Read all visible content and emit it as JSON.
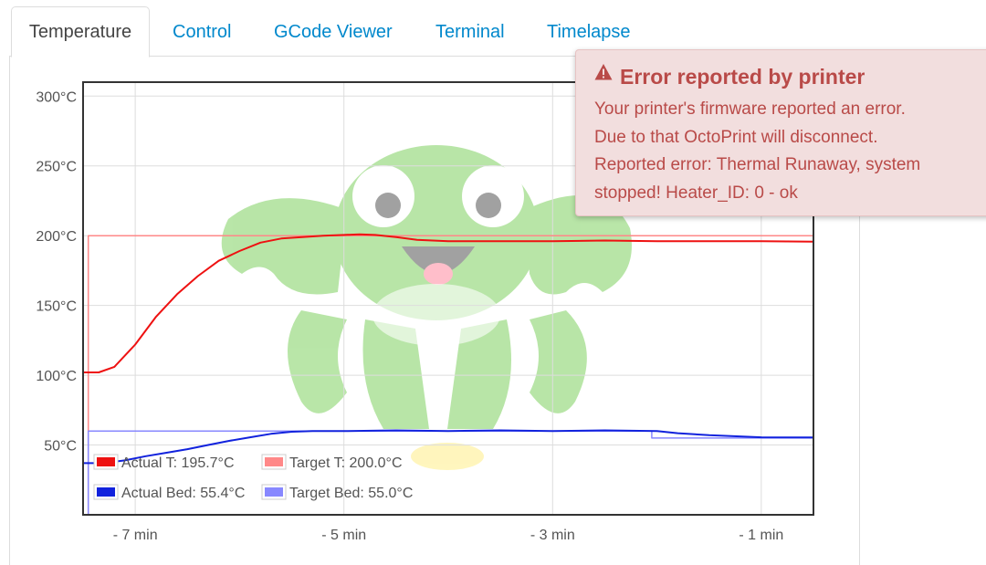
{
  "tabs": [
    {
      "label": "Temperature",
      "active": true
    },
    {
      "label": "Control",
      "active": false
    },
    {
      "label": "GCode Viewer",
      "active": false
    },
    {
      "label": "Terminal",
      "active": false
    },
    {
      "label": "Timelapse",
      "active": false
    }
  ],
  "alert": {
    "icon": "warning-icon",
    "title": "Error reported by printer",
    "lines": [
      "Your printer's firmware reported an error.",
      "Due to that OctoPrint will disconnect.",
      "Reported error: Thermal Runaway, system",
      "stopped! Heater_ID: 0 - ok"
    ],
    "background_color": "#f2dede",
    "text_color": "#b94a48"
  },
  "watermark": {
    "icon": "octoprint-logo-icon",
    "color": "#5fbf3f"
  },
  "chart_data": {
    "type": "line",
    "title": "",
    "xlabel": "",
    "ylabel": "",
    "xlim": [
      -7.5,
      -0.5
    ],
    "ylim": [
      0,
      310
    ],
    "grid": true,
    "x_ticks": [
      {
        "value": -7,
        "label": "- 7 min"
      },
      {
        "value": -5,
        "label": "- 5 min"
      },
      {
        "value": -3,
        "label": "- 3 min"
      },
      {
        "value": -1,
        "label": "- 1 min"
      }
    ],
    "y_ticks": [
      {
        "value": 50,
        "label": "50°C"
      },
      {
        "value": 100,
        "label": "100°C"
      },
      {
        "value": 150,
        "label": "150°C"
      },
      {
        "value": 200,
        "label": "200°C"
      },
      {
        "value": 250,
        "label": "250°C"
      },
      {
        "value": 300,
        "label": "300°C"
      }
    ],
    "legend_position": "bottom-left",
    "series": [
      {
        "name": "Actual T: 195.7°C",
        "color": "#ee1111",
        "width": 2,
        "x": [
          -7.5,
          -7.35,
          -7.2,
          -7.0,
          -6.8,
          -6.6,
          -6.4,
          -6.2,
          -6.0,
          -5.8,
          -5.6,
          -5.4,
          -5.2,
          -5.0,
          -4.85,
          -4.7,
          -4.5,
          -4.3,
          -4.0,
          -3.5,
          -3.0,
          -2.5,
          -2.0,
          -1.5,
          -1.0,
          -0.5
        ],
        "y": [
          102,
          102,
          106,
          122,
          142,
          158,
          171,
          182,
          189,
          195,
          198,
          199,
          200,
          200.5,
          201,
          200.5,
          199,
          197,
          196,
          196,
          196,
          196.5,
          196,
          196,
          196,
          195.7
        ]
      },
      {
        "name": "Target T: 200.0°C",
        "color": "#ff8888",
        "width": 1.5,
        "x": [
          -7.45,
          -7.45,
          -0.5
        ],
        "y": [
          0,
          200,
          200
        ]
      },
      {
        "name": "Actual Bed: 55.4°C",
        "color": "#1122dd",
        "width": 2,
        "x": [
          -7.5,
          -7.3,
          -7.1,
          -6.9,
          -6.7,
          -6.5,
          -6.3,
          -6.1,
          -5.9,
          -5.7,
          -5.5,
          -5.3,
          -5.0,
          -4.5,
          -4.0,
          -3.5,
          -3.0,
          -2.5,
          -2.0,
          -1.8,
          -1.5,
          -1.0,
          -0.5
        ],
        "y": [
          37,
          37,
          39,
          42,
          44.5,
          47,
          50,
          53,
          55.5,
          58,
          59.5,
          60,
          60,
          60.5,
          60,
          60.5,
          60,
          60.5,
          60,
          58.5,
          57,
          55.5,
          55.4
        ]
      },
      {
        "name": "Target Bed: 55.0°C",
        "color": "#8888ff",
        "width": 1.5,
        "x": [
          -7.45,
          -7.45,
          -2.05,
          -2.05,
          -0.5
        ],
        "y": [
          0,
          60,
          60,
          55,
          55
        ]
      }
    ]
  }
}
